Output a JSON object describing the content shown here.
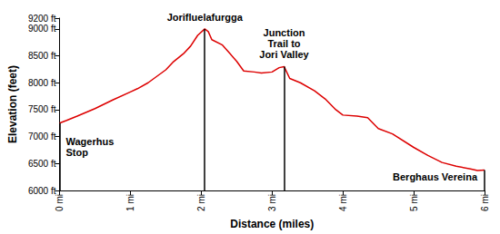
{
  "chart_data": {
    "type": "line",
    "xlabel": "Distance (miles)",
    "ylabel": "Elevation (feet)",
    "color": "#dd0000",
    "grid": false,
    "x": [
      0,
      0.1,
      0.25,
      0.5,
      0.75,
      1.0,
      1.1,
      1.25,
      1.5,
      1.6,
      1.75,
      1.85,
      1.95,
      2.05,
      2.1,
      2.15,
      2.3,
      2.4,
      2.5,
      2.6,
      2.75,
      2.85,
      3.0,
      3.1,
      3.17,
      3.25,
      3.4,
      3.6,
      3.75,
      3.9,
      4.0,
      4.2,
      4.35,
      4.5,
      4.7,
      5.0,
      5.2,
      5.4,
      5.6,
      5.8,
      5.9,
      6.0
    ],
    "values": [
      7250,
      7300,
      7380,
      7520,
      7680,
      7830,
      7890,
      8000,
      8240,
      8380,
      8540,
      8680,
      8880,
      9000,
      8950,
      8800,
      8700,
      8550,
      8400,
      8220,
      8200,
      8180,
      8200,
      8280,
      8300,
      8080,
      8000,
      7850,
      7700,
      7500,
      7400,
      7380,
      7350,
      7150,
      7050,
      6800,
      6650,
      6520,
      6450,
      6400,
      6370,
      6380
    ],
    "xlim": [
      0,
      6
    ],
    "xticks": [
      {
        "value": 0,
        "label": "0 mi"
      },
      {
        "value": 1,
        "label": "1 mi"
      },
      {
        "value": 2,
        "label": "2 mi"
      },
      {
        "value": 3,
        "label": "3 mi"
      },
      {
        "value": 4,
        "label": "4 mi"
      },
      {
        "value": 5,
        "label": "5 mi"
      },
      {
        "value": 6,
        "label": "6 mi"
      }
    ],
    "ylim": [
      6000,
      9200
    ],
    "yticks": [
      {
        "value": 6000,
        "label": "6000 ft"
      },
      {
        "value": 6500,
        "label": "6500 ft"
      },
      {
        "value": 7000,
        "label": "7000 ft"
      },
      {
        "value": 7500,
        "label": "7500 ft"
      },
      {
        "value": 8000,
        "label": "8000 ft"
      },
      {
        "value": 8500,
        "label": "8500 ft"
      },
      {
        "value": 9000,
        "label": "9000 ft"
      },
      {
        "value": 9200,
        "label": "9200 ft"
      }
    ],
    "annotations": [
      {
        "x": 0,
        "y": 7250,
        "label": "Wagerhus\nStop"
      },
      {
        "x": 2.05,
        "y": 9000,
        "label": "Jorifluelafurgga"
      },
      {
        "x": 3.17,
        "y": 8300,
        "label": "Junction\nTrail to\nJori Valley"
      },
      {
        "x": 6,
        "y": 6380,
        "label": "Berghaus Vereina"
      }
    ]
  }
}
